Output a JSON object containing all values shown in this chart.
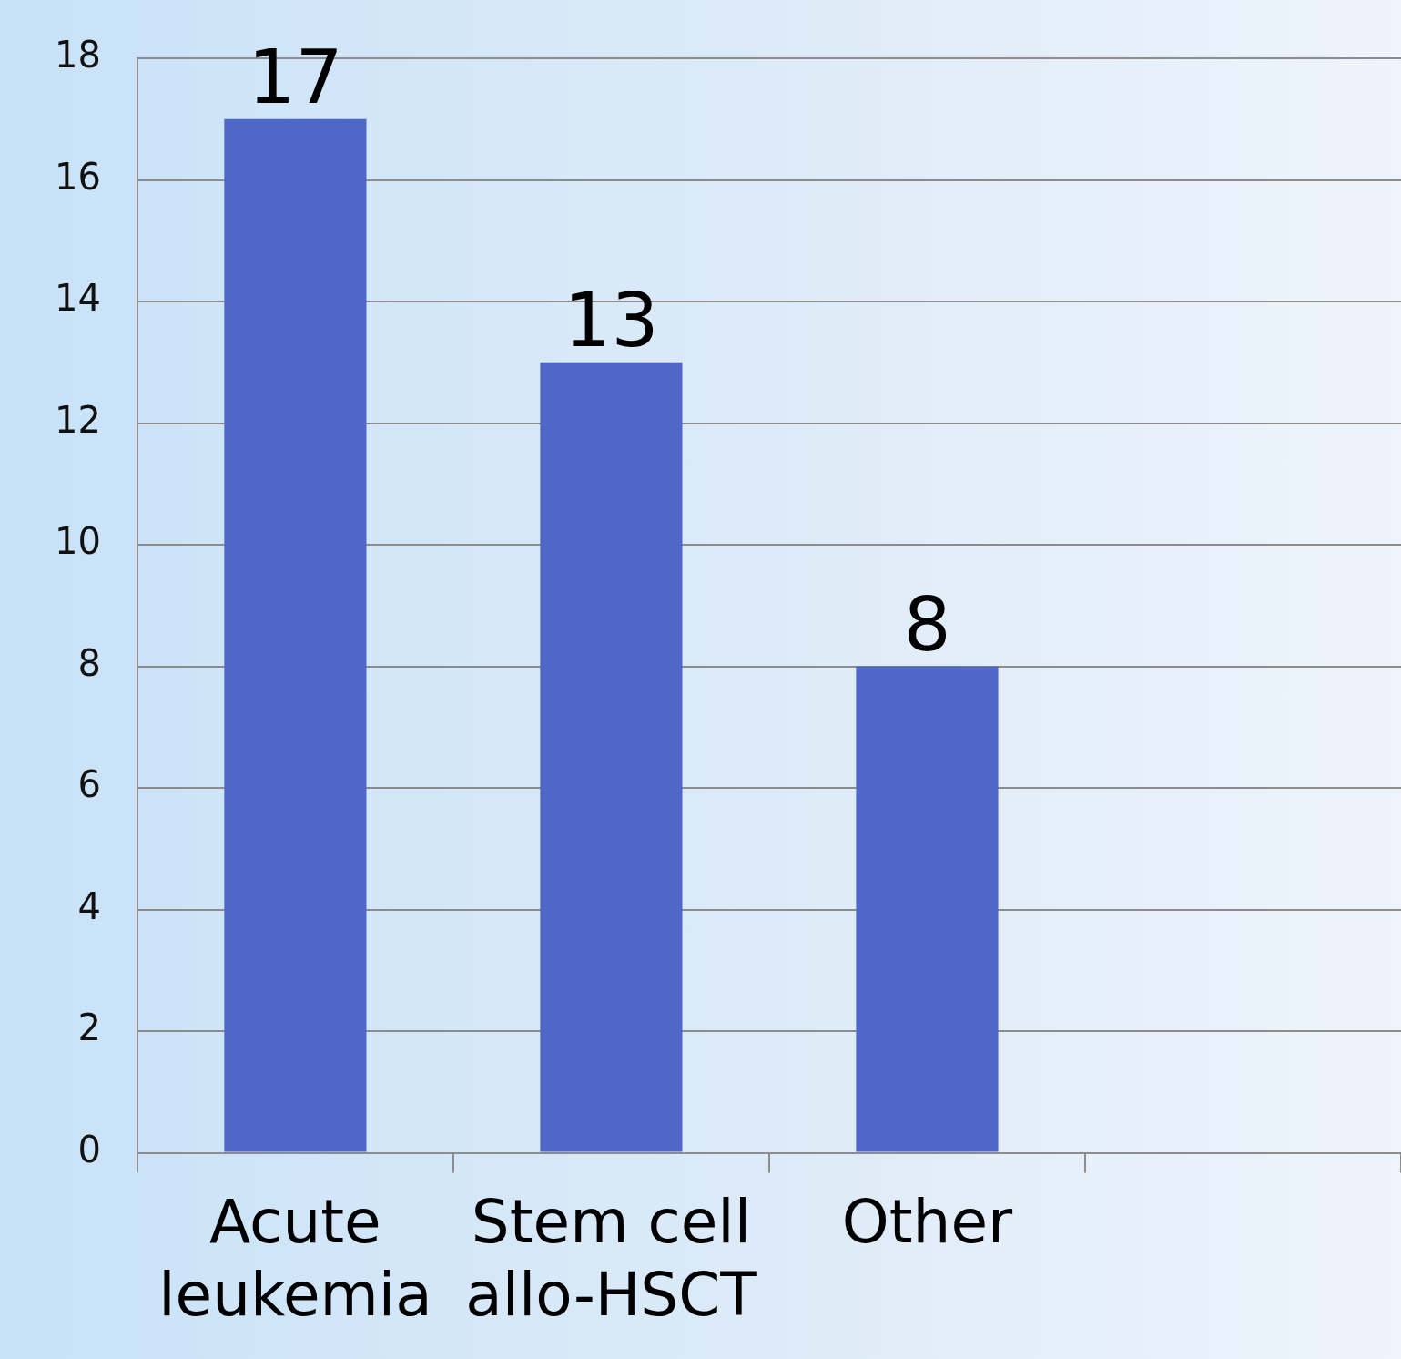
{
  "chart_data": {
    "type": "bar",
    "categories": [
      "Acute leukemia",
      "Stem cell allo-HSCT",
      "Other",
      null
    ],
    "values": [
      17,
      13,
      8,
      null
    ],
    "color": "#4f67c6",
    "ylim": [
      0,
      18
    ],
    "yticks": [
      0,
      2,
      4,
      6,
      8,
      10,
      12,
      14,
      16,
      18
    ],
    "grid": "y",
    "data_labels": true
  }
}
